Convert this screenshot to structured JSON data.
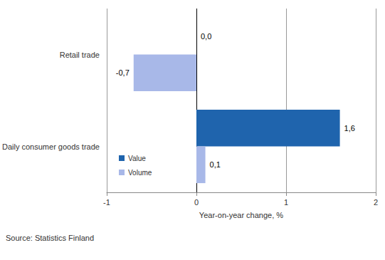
{
  "chart_data": {
    "type": "bar",
    "orientation": "horizontal",
    "categories": [
      "Retail trade",
      "Daily consumer goods trade"
    ],
    "series": [
      {
        "name": "Value",
        "color": "#1f64ad",
        "values": [
          0.0,
          1.6
        ],
        "value_labels": [
          "0,0",
          "1,6"
        ]
      },
      {
        "name": "Volume",
        "color": "#a8b8e8",
        "values": [
          -0.7,
          0.1
        ],
        "value_labels": [
          "-0,7",
          "0,1"
        ]
      }
    ],
    "xlabel": "Year-on-year change, %",
    "xlim": [
      -1,
      2
    ],
    "xticks": [
      -1,
      0,
      1,
      2
    ],
    "grid": true,
    "legend": "lower left",
    "data_labels": true,
    "annotations": [
      "Source: Statistics Finland"
    ]
  }
}
